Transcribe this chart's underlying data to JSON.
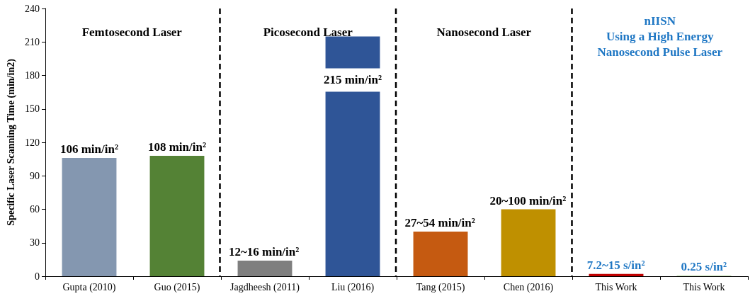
{
  "chart_data": {
    "type": "bar",
    "ylabel": "Specific Laser Scanning Time (min/in2)",
    "categories": [
      "Gupta (2010)",
      "Guo (2015)",
      "Jagdheesh (2011)",
      "Liu (2016)",
      "Tang (2015)",
      "Chen (2016)",
      "This Work",
      "This Work"
    ],
    "values": [
      106,
      108,
      14,
      215,
      40,
      60,
      2,
      0.5
    ],
    "colors": [
      "#8497b0",
      "#548235",
      "#7f7f7f",
      "#2f5597",
      "#c55a11",
      "#bf9000",
      "#c00000",
      "#a9d18e"
    ],
    "value_labels": [
      "106 min/in²",
      "108 min/in²",
      null,
      "215 min/in²",
      null,
      null,
      null,
      null
    ],
    "annotations": [
      "Femtosecond Laser",
      "Picosecond Laser",
      "Nanosecond Laser",
      "nIISN\nUsing a High Energy\nNanosecond Pulse Laser",
      {
        "text": "12~16 min/in²",
        "x": "Jagdheesh (2011)",
        "y": 14
      },
      {
        "text": "27~54 min/in²",
        "x": "Tang (2015)",
        "y": 40
      },
      {
        "text": "20~100 min/in²",
        "x": "Chen (2016)",
        "y": 60
      },
      "7.2~15 s/in²",
      "0.25 s/in²"
    ],
    "ylim": [
      0,
      240
    ],
    "yticks": [
      0,
      30,
      60,
      90,
      120,
      150,
      180,
      210,
      240
    ],
    "grid": false
  }
}
